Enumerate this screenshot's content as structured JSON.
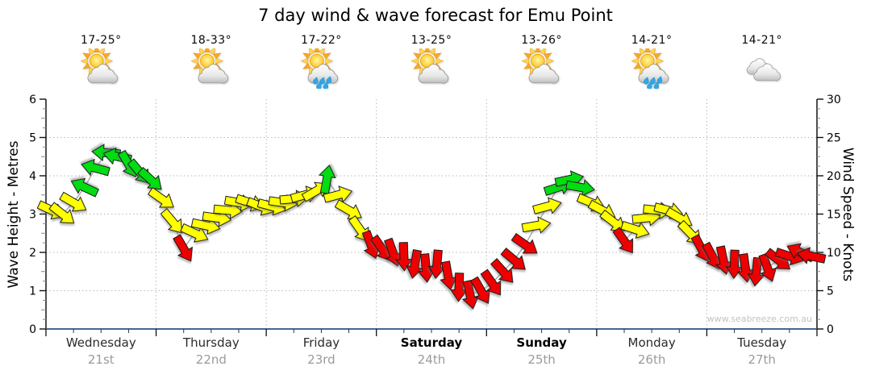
{
  "chart_data": {
    "type": "line",
    "subtype": "wind-direction-arrow-series",
    "title": "7 day wind & wave forecast for Emu Point",
    "watermark": "www.seabreeze.com.au",
    "left_axis": {
      "label": "Wave Height - Metres",
      "min": 0,
      "max": 6,
      "ticks": [
        0,
        1,
        2,
        3,
        4,
        5,
        6
      ]
    },
    "right_axis": {
      "label": "Wind Speed - Knots",
      "min": 0,
      "max": 30,
      "ticks": [
        0,
        5,
        10,
        15,
        20,
        25,
        30
      ]
    },
    "x_axis": {
      "days": [
        {
          "name": "Wednesday",
          "date": "21st",
          "temp_range": "17-25°",
          "weather_icon": "sun-cloud",
          "bold": false
        },
        {
          "name": "Thursday",
          "date": "22nd",
          "temp_range": "18-33°",
          "weather_icon": "sun-cloud",
          "bold": false
        },
        {
          "name": "Friday",
          "date": "23rd",
          "temp_range": "17-22°",
          "weather_icon": "sun-cloud-rain",
          "bold": false
        },
        {
          "name": "Saturday",
          "date": "24th",
          "temp_range": "13-25°",
          "weather_icon": "sun-cloud",
          "bold": true
        },
        {
          "name": "Sunday",
          "date": "25th",
          "temp_range": "13-26°",
          "weather_icon": "sun-cloud",
          "bold": true
        },
        {
          "name": "Monday",
          "date": "26th",
          "temp_range": "14-21°",
          "weather_icon": "sun-cloud-rain",
          "bold": false
        },
        {
          "name": "Tuesday",
          "date": "27th",
          "temp_range": "14-21°",
          "weather_icon": "clouds",
          "bold": false
        }
      ]
    },
    "wind_series": {
      "units": "knots",
      "arrows_per_day": 10,
      "speeds": [
        15.5,
        15,
        16.5,
        18.5,
        21,
        23,
        22.5,
        21.5,
        20.5,
        19.5,
        17,
        14,
        10.5,
        12.5,
        13.5,
        14.5,
        15.5,
        16.5,
        16.5,
        16,
        16,
        16.5,
        17,
        17.5,
        18,
        19.5,
        17.5,
        15.5,
        13,
        11,
        10.5,
        10,
        9.5,
        8.5,
        8,
        8.5,
        7,
        5.5,
        4.5,
        5,
        6,
        7.5,
        9,
        11,
        13.5,
        16,
        18.5,
        19.5,
        18.5,
        16.5,
        15.5,
        14,
        11.5,
        13,
        14.5,
        15.5,
        15.5,
        14.5,
        12.5,
        10.5,
        9.5,
        9,
        8.5,
        8,
        7.5,
        8,
        9,
        9.5,
        10,
        9.5
      ],
      "directions_deg_cw_from_east": [
        25,
        38,
        30,
        205,
        195,
        185,
        192,
        60,
        50,
        42,
        35,
        50,
        60,
        25,
        12,
        8,
        5,
        10,
        18,
        22,
        15,
        8,
        -5,
        -15,
        -30,
        -80,
        -15,
        30,
        55,
        70,
        55,
        70,
        88,
        100,
        85,
        95,
        80,
        92,
        78,
        60,
        55,
        48,
        40,
        35,
        -10,
        -15,
        -18,
        -12,
        10,
        22,
        28,
        38,
        55,
        18,
        -6,
        6,
        14,
        30,
        46,
        62,
        62,
        78,
        92,
        82,
        96,
        70,
        38,
        18,
        205,
        192
      ]
    },
    "color_bands": [
      {
        "name": "strong",
        "min_knots": 18.5,
        "color": "#00DD11"
      },
      {
        "name": "moderate",
        "min_knots": 12,
        "color": "#FFFF00"
      },
      {
        "name": "light",
        "min_knots": 0,
        "color": "#EE0000"
      }
    ],
    "colors": {
      "arrow_outline": "#1a1a1a",
      "connector_line": "#aaaaaa",
      "grid": "#b8b8b8",
      "axis_left_right": "#222222",
      "axis_bottom": "#44688e",
      "major_tick": "#111111",
      "minor_tick": "#888888",
      "tick_label": "#000000"
    },
    "layout_hints": {
      "grid_style": "dotted",
      "legend": "none",
      "plot_background": "#ffffff"
    }
  }
}
